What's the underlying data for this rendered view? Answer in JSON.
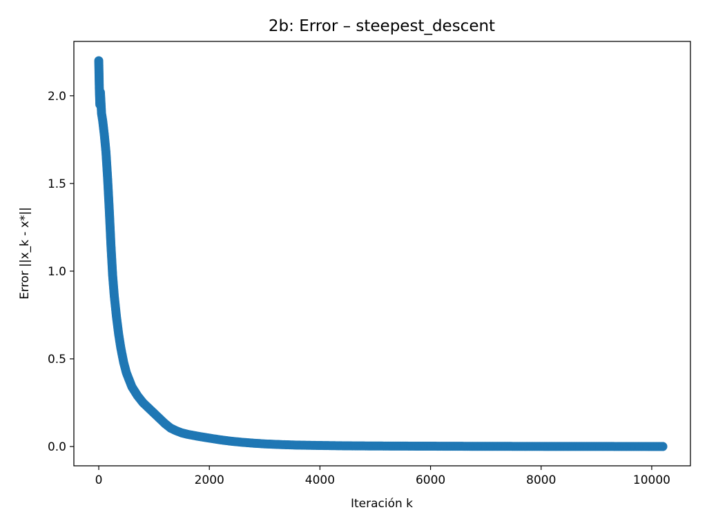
{
  "chart_data": {
    "type": "line",
    "title": "2b: Error – steepest_descent",
    "xlabel": "Iteración k",
    "ylabel": "Error ||x_k - x*||",
    "xlim": [
      -450,
      10700
    ],
    "ylim": [
      -0.11,
      2.31
    ],
    "xticks": [
      0,
      2000,
      4000,
      6000,
      8000,
      10000
    ],
    "yticks": [
      0.0,
      0.5,
      1.0,
      1.5,
      2.0
    ],
    "xtick_labels": [
      "0",
      "2000",
      "4000",
      "6000",
      "8000",
      "10000"
    ],
    "ytick_labels": [
      "0.0",
      "0.5",
      "1.0",
      "1.5",
      "2.0"
    ],
    "grid": false,
    "marker": "circle",
    "color": "#1f77b4",
    "series": [
      {
        "x": [
          0,
          10,
          20,
          30,
          50,
          70,
          100,
          130,
          160,
          190,
          220,
          250,
          280,
          320,
          360,
          400,
          450,
          500,
          550,
          600,
          700,
          800,
          900,
          1000,
          1100,
          1200,
          1300,
          1400,
          1500,
          1600,
          1800,
          2000,
          2200,
          2400,
          2600,
          2800,
          3000,
          3300,
          3600,
          4000,
          4500,
          5000,
          6000,
          7000,
          8000,
          9000,
          10000,
          10200
        ],
        "y": [
          2.2,
          2.04,
          1.95,
          2.02,
          1.9,
          1.86,
          1.78,
          1.68,
          1.53,
          1.35,
          1.15,
          0.98,
          0.86,
          0.74,
          0.64,
          0.56,
          0.48,
          0.42,
          0.38,
          0.34,
          0.29,
          0.25,
          0.22,
          0.19,
          0.16,
          0.13,
          0.105,
          0.09,
          0.078,
          0.07,
          0.058,
          0.048,
          0.038,
          0.03,
          0.024,
          0.019,
          0.015,
          0.011,
          0.008,
          0.006,
          0.004,
          0.003,
          0.002,
          0.001,
          0.0008,
          0.0005,
          0.0003,
          0.0002
        ]
      }
    ]
  }
}
